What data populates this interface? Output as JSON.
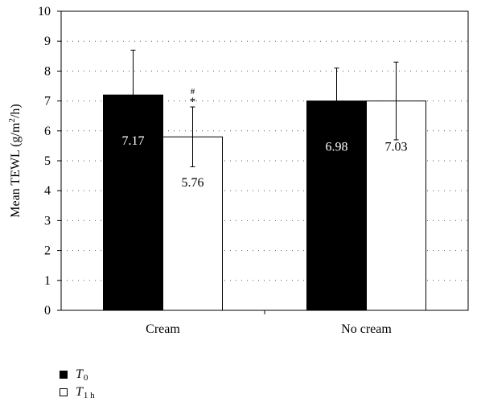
{
  "chart_data": {
    "type": "bar",
    "categories": [
      "Cream",
      "No cream"
    ],
    "series": [
      {
        "name": "T0",
        "name_main": "T",
        "name_sub": "0",
        "color": "#000000",
        "values": [
          7.2,
          7.0
        ],
        "labels": [
          "7.17",
          "6.98"
        ],
        "errors": [
          1.5,
          1.1
        ]
      },
      {
        "name": "T1 h",
        "name_main": "T",
        "name_sub": "1 h",
        "color": "#ffffff",
        "values": [
          5.8,
          7.0
        ],
        "labels": [
          "5.76",
          "7.03"
        ],
        "errors": [
          1.0,
          1.3
        ]
      }
    ],
    "annotations": [
      {
        "text": "#",
        "category": 0,
        "series": 1
      },
      {
        "text": "*",
        "category": 0,
        "series": 1
      }
    ],
    "ylabel_parts": [
      "Mean TEWL (g/m",
      "2",
      "/h)"
    ],
    "xlabel": "",
    "ylim": [
      0,
      10
    ],
    "yticks": [
      "0",
      "1",
      "2",
      "3",
      "4",
      "5",
      "6",
      "7",
      "8",
      "9",
      "10"
    ],
    "grid": true,
    "legend_position": "bottom-left"
  }
}
